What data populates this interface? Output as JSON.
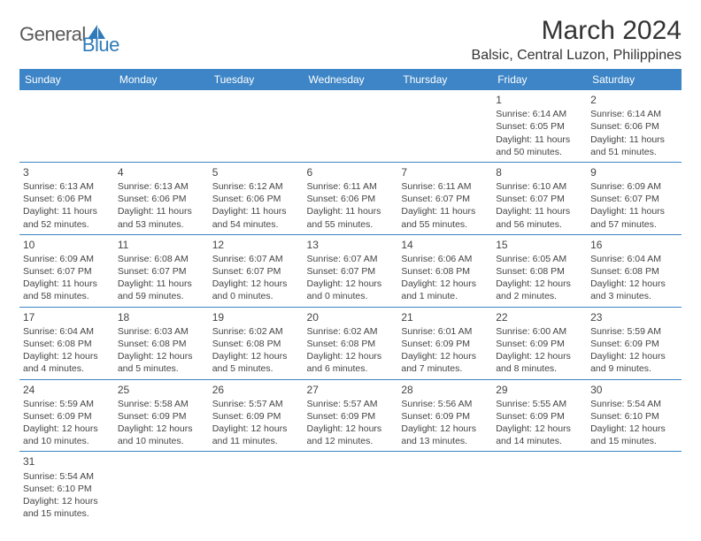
{
  "logo": {
    "main": "General",
    "sub": "Blue"
  },
  "title": "March 2024",
  "location": "Balsic, Central Luzon, Philippines",
  "header_color": "#3d85c6",
  "border_color": "#3d85c6",
  "dayNames": [
    "Sunday",
    "Monday",
    "Tuesday",
    "Wednesday",
    "Thursday",
    "Friday",
    "Saturday"
  ],
  "weeks": [
    [
      null,
      null,
      null,
      null,
      null,
      {
        "n": "1",
        "rise": "Sunrise: 6:14 AM",
        "set": "Sunset: 6:05 PM",
        "day": "Daylight: 11 hours and 50 minutes."
      },
      {
        "n": "2",
        "rise": "Sunrise: 6:14 AM",
        "set": "Sunset: 6:06 PM",
        "day": "Daylight: 11 hours and 51 minutes."
      }
    ],
    [
      {
        "n": "3",
        "rise": "Sunrise: 6:13 AM",
        "set": "Sunset: 6:06 PM",
        "day": "Daylight: 11 hours and 52 minutes."
      },
      {
        "n": "4",
        "rise": "Sunrise: 6:13 AM",
        "set": "Sunset: 6:06 PM",
        "day": "Daylight: 11 hours and 53 minutes."
      },
      {
        "n": "5",
        "rise": "Sunrise: 6:12 AM",
        "set": "Sunset: 6:06 PM",
        "day": "Daylight: 11 hours and 54 minutes."
      },
      {
        "n": "6",
        "rise": "Sunrise: 6:11 AM",
        "set": "Sunset: 6:06 PM",
        "day": "Daylight: 11 hours and 55 minutes."
      },
      {
        "n": "7",
        "rise": "Sunrise: 6:11 AM",
        "set": "Sunset: 6:07 PM",
        "day": "Daylight: 11 hours and 55 minutes."
      },
      {
        "n": "8",
        "rise": "Sunrise: 6:10 AM",
        "set": "Sunset: 6:07 PM",
        "day": "Daylight: 11 hours and 56 minutes."
      },
      {
        "n": "9",
        "rise": "Sunrise: 6:09 AM",
        "set": "Sunset: 6:07 PM",
        "day": "Daylight: 11 hours and 57 minutes."
      }
    ],
    [
      {
        "n": "10",
        "rise": "Sunrise: 6:09 AM",
        "set": "Sunset: 6:07 PM",
        "day": "Daylight: 11 hours and 58 minutes."
      },
      {
        "n": "11",
        "rise": "Sunrise: 6:08 AM",
        "set": "Sunset: 6:07 PM",
        "day": "Daylight: 11 hours and 59 minutes."
      },
      {
        "n": "12",
        "rise": "Sunrise: 6:07 AM",
        "set": "Sunset: 6:07 PM",
        "day": "Daylight: 12 hours and 0 minutes."
      },
      {
        "n": "13",
        "rise": "Sunrise: 6:07 AM",
        "set": "Sunset: 6:07 PM",
        "day": "Daylight: 12 hours and 0 minutes."
      },
      {
        "n": "14",
        "rise": "Sunrise: 6:06 AM",
        "set": "Sunset: 6:08 PM",
        "day": "Daylight: 12 hours and 1 minute."
      },
      {
        "n": "15",
        "rise": "Sunrise: 6:05 AM",
        "set": "Sunset: 6:08 PM",
        "day": "Daylight: 12 hours and 2 minutes."
      },
      {
        "n": "16",
        "rise": "Sunrise: 6:04 AM",
        "set": "Sunset: 6:08 PM",
        "day": "Daylight: 12 hours and 3 minutes."
      }
    ],
    [
      {
        "n": "17",
        "rise": "Sunrise: 6:04 AM",
        "set": "Sunset: 6:08 PM",
        "day": "Daylight: 12 hours and 4 minutes."
      },
      {
        "n": "18",
        "rise": "Sunrise: 6:03 AM",
        "set": "Sunset: 6:08 PM",
        "day": "Daylight: 12 hours and 5 minutes."
      },
      {
        "n": "19",
        "rise": "Sunrise: 6:02 AM",
        "set": "Sunset: 6:08 PM",
        "day": "Daylight: 12 hours and 5 minutes."
      },
      {
        "n": "20",
        "rise": "Sunrise: 6:02 AM",
        "set": "Sunset: 6:08 PM",
        "day": "Daylight: 12 hours and 6 minutes."
      },
      {
        "n": "21",
        "rise": "Sunrise: 6:01 AM",
        "set": "Sunset: 6:09 PM",
        "day": "Daylight: 12 hours and 7 minutes."
      },
      {
        "n": "22",
        "rise": "Sunrise: 6:00 AM",
        "set": "Sunset: 6:09 PM",
        "day": "Daylight: 12 hours and 8 minutes."
      },
      {
        "n": "23",
        "rise": "Sunrise: 5:59 AM",
        "set": "Sunset: 6:09 PM",
        "day": "Daylight: 12 hours and 9 minutes."
      }
    ],
    [
      {
        "n": "24",
        "rise": "Sunrise: 5:59 AM",
        "set": "Sunset: 6:09 PM",
        "day": "Daylight: 12 hours and 10 minutes."
      },
      {
        "n": "25",
        "rise": "Sunrise: 5:58 AM",
        "set": "Sunset: 6:09 PM",
        "day": "Daylight: 12 hours and 10 minutes."
      },
      {
        "n": "26",
        "rise": "Sunrise: 5:57 AM",
        "set": "Sunset: 6:09 PM",
        "day": "Daylight: 12 hours and 11 minutes."
      },
      {
        "n": "27",
        "rise": "Sunrise: 5:57 AM",
        "set": "Sunset: 6:09 PM",
        "day": "Daylight: 12 hours and 12 minutes."
      },
      {
        "n": "28",
        "rise": "Sunrise: 5:56 AM",
        "set": "Sunset: 6:09 PM",
        "day": "Daylight: 12 hours and 13 minutes."
      },
      {
        "n": "29",
        "rise": "Sunrise: 5:55 AM",
        "set": "Sunset: 6:09 PM",
        "day": "Daylight: 12 hours and 14 minutes."
      },
      {
        "n": "30",
        "rise": "Sunrise: 5:54 AM",
        "set": "Sunset: 6:10 PM",
        "day": "Daylight: 12 hours and 15 minutes."
      }
    ],
    [
      {
        "n": "31",
        "rise": "Sunrise: 5:54 AM",
        "set": "Sunset: 6:10 PM",
        "day": "Daylight: 12 hours and 15 minutes."
      },
      null,
      null,
      null,
      null,
      null,
      null
    ]
  ]
}
